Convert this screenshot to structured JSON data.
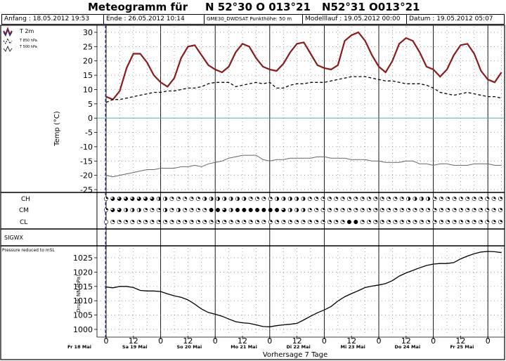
{
  "title": {
    "main": "Meteogramm für",
    "coord1": "N 52°30 O 013°21",
    "coord2": "N52°31 O013°21"
  },
  "info": {
    "start": "Anfang : 18.05.2012 19:53",
    "end": "Ende : 26.05.2012 10:14",
    "model": "GME30_DWDSAT  Punkthöhe: 50 m",
    "run": "Modelllauf : 19.05.2012 00:00",
    "date": "Datum : 19.05.2012 05:07"
  },
  "colors": {
    "t2m": "#8b1a1a",
    "t850": "#000000",
    "t500": "#666666",
    "grid_dot": "#777777",
    "zero_line": "#5aa6a6",
    "cloud_dark": "#000000"
  },
  "chart_data": [
    {
      "type": "line",
      "ylabel": "Temp (°C)",
      "ylim": [
        -25,
        30
      ],
      "yticks": [
        30,
        25,
        20,
        15,
        10,
        5,
        0,
        -5,
        -10,
        -15,
        -20,
        -25
      ],
      "legend": [
        "T 2m",
        "T 850 hPa",
        "T 500 hPa"
      ],
      "grid": true,
      "x_hours": [
        0,
        3,
        6,
        9,
        12,
        15,
        18,
        21,
        24,
        27,
        30,
        33,
        36,
        39,
        42,
        45,
        48,
        51,
        54,
        57,
        60,
        63,
        66,
        69,
        72,
        75,
        78,
        81,
        84,
        87,
        90,
        93,
        96,
        99,
        102,
        105,
        108,
        111,
        114,
        117,
        120,
        123,
        126,
        129,
        132,
        135,
        138,
        141,
        144,
        147,
        150,
        153,
        156,
        159,
        162,
        165,
        168,
        171,
        174
      ],
      "series": [
        {
          "name": "T 2m",
          "values": [
            7.5,
            6.5,
            9.5,
            17.5,
            22.5,
            22.5,
            19.5,
            15,
            12.5,
            11,
            14,
            21,
            25,
            25.5,
            22,
            18.5,
            17,
            16,
            18,
            23,
            26,
            25,
            21,
            18,
            17,
            16.5,
            19,
            23,
            26,
            26.5,
            22.5,
            18.5,
            17.5,
            17,
            18.5,
            27,
            29,
            30,
            27,
            22,
            18,
            16,
            20,
            26,
            28,
            27,
            23,
            18,
            17,
            14.5,
            17,
            22,
            25.5,
            26,
            22.5,
            16.5,
            13.5,
            12.5,
            16
          ]
        },
        {
          "name": "T 850 hPa",
          "values": [
            5.5,
            6.5,
            6.5,
            7,
            7.5,
            8,
            8.5,
            9,
            9,
            9.5,
            9.5,
            10,
            10.5,
            10.5,
            11,
            12,
            12.5,
            12.5,
            12.5,
            11,
            11.5,
            12,
            12.5,
            12,
            12.5,
            10.5,
            10.5,
            11.5,
            12,
            12,
            12.5,
            12.5,
            12.5,
            13,
            13.5,
            14,
            14.5,
            14.5,
            14.5,
            14,
            13.5,
            13,
            13,
            12.5,
            12,
            12,
            12,
            11.5,
            10.5,
            9,
            8.5,
            8,
            8.5,
            9,
            8.5,
            8,
            7.5,
            7.5,
            7
          ]
        },
        {
          "name": "T 500 hPa",
          "values": [
            -20,
            -20.5,
            -20,
            -19.5,
            -19,
            -18.5,
            -18,
            -18,
            -17.5,
            -17.5,
            -17.5,
            -17,
            -17,
            -16.5,
            -17,
            -16,
            -15.5,
            -15,
            -14,
            -13.5,
            -13,
            -13,
            -13,
            -14.5,
            -15,
            -14.5,
            -14.5,
            -14,
            -14,
            -14,
            -14,
            -13.5,
            -13.5,
            -14,
            -14,
            -14,
            -14.5,
            -14.5,
            -14.5,
            -15,
            -15,
            -15.5,
            -15.5,
            -15.5,
            -15,
            -15,
            -16,
            -16,
            -16.5,
            -16,
            -16,
            -16.5,
            -16.5,
            -16.5,
            -16,
            -16,
            -16,
            -16.5,
            -16.5
          ]
        }
      ]
    },
    {
      "type": "table",
      "rows": [
        "CH",
        "CM",
        "CL"
      ],
      "symbol_levels_0_to_8": {
        "CH": [
          2,
          6,
          6,
          6,
          6,
          6,
          6,
          6,
          4,
          4,
          2,
          2,
          2,
          2,
          2,
          4,
          4,
          4,
          4,
          4,
          4,
          4,
          2,
          2,
          2,
          2,
          4,
          4,
          4,
          4,
          4,
          2,
          2,
          2,
          2,
          2,
          2,
          2,
          2,
          2,
          2,
          2,
          2,
          2,
          2,
          2,
          4,
          4,
          4,
          4,
          2,
          2,
          2,
          2,
          2,
          2,
          2,
          2,
          2,
          2,
          2
        ],
        "CM": [
          2,
          6,
          6,
          4,
          4,
          4,
          2,
          2,
          2,
          4,
          2,
          4,
          2,
          2,
          2,
          2,
          8,
          8,
          6,
          4,
          8,
          8,
          8,
          8,
          8,
          8,
          8,
          6,
          4,
          4,
          4,
          2,
          2,
          2,
          2,
          2,
          2,
          2,
          2,
          2,
          2,
          2,
          2,
          2,
          2,
          2,
          2,
          2,
          2,
          2,
          2,
          2,
          2,
          2,
          2,
          2,
          2,
          2,
          2,
          2,
          2
        ],
        "CL": [
          0,
          2,
          2,
          2,
          2,
          2,
          2,
          2,
          2,
          2,
          2,
          2,
          2,
          2,
          2,
          2,
          2,
          2,
          2,
          2,
          2,
          2,
          2,
          2,
          2,
          2,
          2,
          2,
          2,
          2,
          2,
          2,
          2,
          2,
          2,
          2,
          2,
          8,
          8,
          2,
          2,
          2,
          2,
          2,
          2,
          2,
          2,
          2,
          2,
          2,
          2,
          2,
          2,
          2,
          2,
          2,
          2,
          2,
          2,
          2,
          2
        ]
      }
    },
    {
      "type": "table",
      "label": "SIGWX",
      "values": []
    },
    {
      "type": "line",
      "title": "Pressure reduced to mSL",
      "ylabel": "Druck NN (hPa)",
      "ylim": [
        1000,
        1028
      ],
      "yticks": [
        1025,
        1020,
        1015,
        1010,
        1005,
        1000
      ],
      "grid": true,
      "x_hours": [
        0,
        3,
        6,
        9,
        12,
        15,
        18,
        21,
        24,
        27,
        30,
        33,
        36,
        39,
        42,
        45,
        48,
        51,
        54,
        57,
        60,
        63,
        66,
        69,
        72,
        75,
        78,
        81,
        84,
        87,
        90,
        93,
        96,
        99,
        102,
        105,
        108,
        111,
        114,
        117,
        120,
        123,
        126,
        129,
        132,
        135,
        138,
        141,
        144,
        147,
        150,
        153,
        156,
        159,
        162,
        165,
        168,
        171,
        174
      ],
      "series": [
        {
          "name": "Pressure reduced to mSL",
          "values": [
            1014.8,
            1014.5,
            1015.0,
            1015.0,
            1014.6,
            1013.6,
            1013.4,
            1013.4,
            1013.2,
            1012.4,
            1011.7,
            1011.2,
            1010.3,
            1008.8,
            1007.1,
            1005.9,
            1005.3,
            1004.6,
            1003.6,
            1002.7,
            1002.3,
            1002.1,
            1001.6,
            1001.0,
            1000.9,
            1001.3,
            1001.6,
            1001.8,
            1002.1,
            1003.3,
            1004.6,
            1005.8,
            1006.8,
            1008.0,
            1009.9,
            1011.4,
            1012.5,
            1013.5,
            1014.6,
            1015.1,
            1015.5,
            1016.0,
            1017.0,
            1018.6,
            1019.7,
            1020.6,
            1021.5,
            1022.3,
            1022.8,
            1023.0,
            1023.0,
            1023.3,
            1024.6,
            1025.6,
            1026.4,
            1027.0,
            1027.2,
            1027.1,
            1026.8
          ]
        }
      ]
    }
  ],
  "rows": {
    "cloud_labels": [
      "CH",
      "CM",
      "CL"
    ],
    "sigwx": "SIGWX",
    "pressure_title": "Pressure reduced to mSL"
  },
  "legend": {
    "t2m": "T 2m",
    "t850": "T 850 hPa",
    "t500": "T 500 hPa"
  },
  "axes": {
    "temp_ylabel": "Temp (°C)",
    "pressure_ylabel": "Druck NN (hPa)",
    "temp_ticks": [
      "30",
      "25",
      "20",
      "15",
      "10",
      "5",
      "0",
      "-5",
      "-10",
      "-15",
      "-20",
      "-25"
    ],
    "pressure_ticks": [
      "1025",
      "1020",
      "1015",
      "1010",
      "1005",
      "1000"
    ],
    "hour_ticks": [
      "0",
      "12",
      "0",
      "12",
      "0",
      "12",
      "0",
      "12",
      "0",
      "12",
      "0",
      "12",
      "0",
      "12",
      "0"
    ],
    "day_labels": [
      "Fr 18 Mai",
      "Sa 19 Mai",
      "So 20 Mai",
      "Mo 21 Mai",
      "Di 22 Mai",
      "Mi 23 Mai",
      "Do 24 Mai",
      "Fr 25 Mai",
      "Sa 2"
    ],
    "footer": "Vorhersage 7 Tage"
  }
}
